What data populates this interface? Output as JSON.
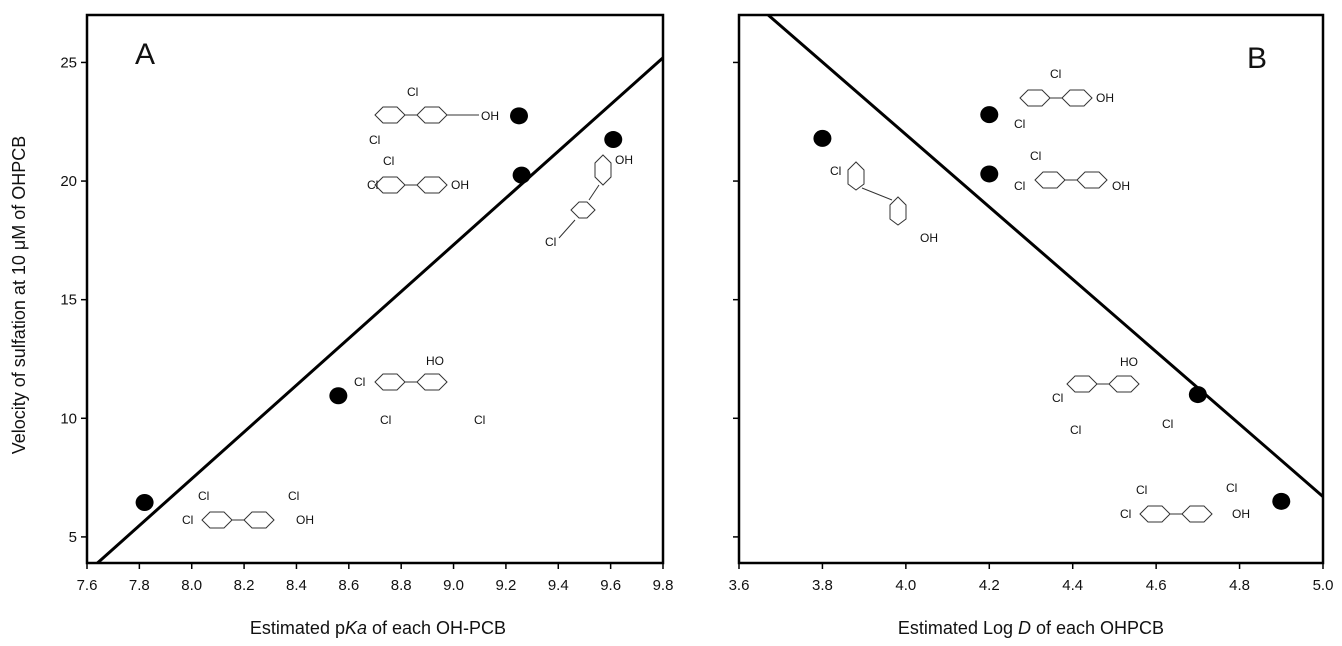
{
  "chart_data": [
    {
      "type": "scatter",
      "panel_label": "A",
      "xlabel_parts": [
        "Estimated p",
        "Ka",
        " of each OH-PCB"
      ],
      "ylabel": "Velocity of sulfation at 10 μM of OHPCB",
      "xlim": [
        7.6,
        9.8
      ],
      "ylim": [
        3.9,
        27.0
      ],
      "x_ticks": [
        "7.6",
        "7.8",
        "8.0",
        "8.2",
        "8.4",
        "8.6",
        "8.8",
        "9.0",
        "9.2",
        "9.4",
        "9.6",
        "9.8"
      ],
      "y_ticks": [
        "5",
        "10",
        "15",
        "20",
        "25"
      ],
      "points": [
        {
          "x": 7.82,
          "y": 6.45
        },
        {
          "x": 8.56,
          "y": 10.95
        },
        {
          "x": 9.25,
          "y": 22.75
        },
        {
          "x": 9.26,
          "y": 20.25
        },
        {
          "x": 9.61,
          "y": 21.75
        }
      ],
      "fit_line": [
        {
          "x": 7.64,
          "y": 3.9
        },
        {
          "x": 9.8,
          "y": 25.2
        }
      ],
      "structure_labels": {
        "s1": [
          "Cl",
          "Cl",
          "OH"
        ],
        "s2": [
          "Cl",
          "Cl",
          "OH"
        ],
        "s3": [
          "OH",
          "Cl"
        ],
        "s4": [
          "HO",
          "Cl",
          "Cl",
          "Cl"
        ],
        "s5": [
          "Cl",
          "Cl",
          "Cl",
          "OH"
        ]
      }
    },
    {
      "type": "scatter",
      "panel_label": "B",
      "xlabel_parts": [
        "Estimated Log ",
        "D",
        " of each OHPCB"
      ],
      "ylabel": "",
      "xlim": [
        3.6,
        5.0
      ],
      "ylim": [
        3.9,
        27.0
      ],
      "x_ticks": [
        "3.6",
        "3.8",
        "4.0",
        "4.2",
        "4.4",
        "4.6",
        "4.8",
        "5.0"
      ],
      "y_ticks": [
        "",
        "",
        "",
        "",
        ""
      ],
      "points": [
        {
          "x": 3.8,
          "y": 21.8
        },
        {
          "x": 4.2,
          "y": 22.8
        },
        {
          "x": 4.2,
          "y": 20.3
        },
        {
          "x": 4.7,
          "y": 11.0
        },
        {
          "x": 4.9,
          "y": 6.5
        }
      ],
      "fit_line": [
        {
          "x": 3.67,
          "y": 27.0
        },
        {
          "x": 5.0,
          "y": 6.7
        }
      ],
      "structure_labels": {
        "s1": [
          "Cl",
          "Cl",
          "OH"
        ],
        "s2": [
          "Cl",
          "Cl",
          "OH"
        ],
        "s3": [
          "Cl",
          "OH"
        ],
        "s4": [
          "HO",
          "Cl",
          "Cl",
          "Cl"
        ],
        "s5": [
          "Cl",
          "Cl",
          "Cl",
          "OH"
        ]
      }
    }
  ]
}
